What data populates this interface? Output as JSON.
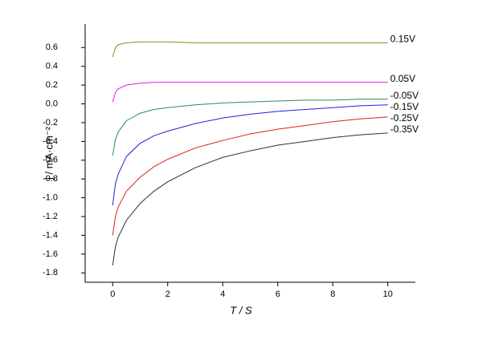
{
  "chart_data": {
    "type": "line",
    "xlabel": "T / S",
    "ylabel": "j / mA·cm⁻²",
    "x": [
      0,
      0.1,
      0.2,
      0.5,
      1,
      1.5,
      2,
      3,
      4,
      5,
      6,
      7,
      8,
      9,
      10
    ],
    "series": [
      {
        "name": "0.15V",
        "color": "#8a8a20",
        "values": [
          0.5,
          0.6,
          0.63,
          0.65,
          0.66,
          0.66,
          0.66,
          0.65,
          0.65,
          0.65,
          0.65,
          0.65,
          0.65,
          0.65,
          0.65
        ]
      },
      {
        "name": "0.05V",
        "color": "#e020e0",
        "values": [
          0.02,
          0.12,
          0.16,
          0.2,
          0.22,
          0.23,
          0.23,
          0.23,
          0.23,
          0.23,
          0.23,
          0.23,
          0.23,
          0.23,
          0.23
        ]
      },
      {
        "name": "-0.05V",
        "color": "#2a8a5a",
        "values": [
          -0.55,
          -0.38,
          -0.3,
          -0.18,
          -0.1,
          -0.06,
          -0.04,
          -0.01,
          0.01,
          0.02,
          0.03,
          0.04,
          0.04,
          0.05,
          0.05
        ]
      },
      {
        "name": "-0.15V",
        "color": "#2020e0",
        "values": [
          -1.08,
          -0.85,
          -0.75,
          -0.56,
          -0.42,
          -0.34,
          -0.29,
          -0.21,
          -0.15,
          -0.11,
          -0.08,
          -0.06,
          -0.04,
          -0.02,
          -0.01
        ]
      },
      {
        "name": "-0.25V",
        "color": "#e02020",
        "values": [
          -1.4,
          -1.2,
          -1.1,
          -0.93,
          -0.78,
          -0.67,
          -0.59,
          -0.47,
          -0.39,
          -0.32,
          -0.27,
          -0.23,
          -0.19,
          -0.16,
          -0.14
        ]
      },
      {
        "name": "-0.35V",
        "color": "#303030",
        "values": [
          -1.72,
          -1.52,
          -1.42,
          -1.24,
          -1.06,
          -0.93,
          -0.83,
          -0.68,
          -0.57,
          -0.5,
          -0.44,
          -0.4,
          -0.36,
          -0.33,
          -0.31
        ]
      }
    ],
    "xlim": [
      -1,
      11
    ],
    "ylim": [
      -1.9,
      0.85
    ],
    "xticks": [
      0,
      2,
      4,
      6,
      8,
      10
    ],
    "yticks": [
      0.6,
      0.4,
      0.2,
      {
        "value": 0,
        "label": "0.0"
      },
      -0.2,
      -0.4,
      -0.6,
      -0.8,
      {
        "value": -1,
        "label": "-1.0"
      },
      -1.2,
      -1.4,
      -1.6,
      -1.8
    ]
  }
}
